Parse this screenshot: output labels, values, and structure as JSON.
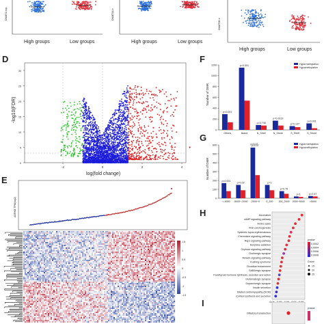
{
  "panels": {
    "D": "D",
    "E": "E",
    "F": "F",
    "G": "G",
    "H": "H",
    "I": "I"
  },
  "top": {
    "ylabels": [
      "DNMT1 exp",
      "DNMT3A e",
      "DNMT3B e"
    ],
    "xlabels": [
      "High groups",
      "Low groups"
    ],
    "colors": {
      "high": "#2a6fdb",
      "low": "#e0303a"
    }
  },
  "volcano": {
    "ylabel": "-log10(FDR)",
    "xlabel": "log(fold change)",
    "yticks": [
      "0",
      "5",
      "10",
      "15",
      "20",
      "25",
      "30"
    ],
    "xticks": [
      "-2",
      "0",
      "2",
      "4"
    ],
    "colors": {
      "down": "#22c41f",
      "mid": "#1c1cdb",
      "up": "#e01a1a"
    }
  },
  "expr": {
    "ylabel": "AURKB TPM(log2)",
    "colorbar_ticks": [
      "1.5",
      "1",
      "0.5",
      "0",
      "-0.5",
      "-1",
      "-1.5"
    ]
  },
  "dmr_f": {
    "ylabel": "Number of DMR",
    "legend": [
      "Hypermethylation",
      "Hypomethylation"
    ],
    "categories": [
      "Others",
      "Island",
      "N_Shelf",
      "N_Shore",
      "S_Shelf",
      "S_Shore"
    ],
    "pvalues": [
      "p<0.001",
      "p=0.001",
      "p=0.746",
      "p=0.0019",
      "p=0.137",
      "p<0.001"
    ],
    "yticks": [
      "0",
      "200",
      "400",
      "600",
      "800",
      "1000",
      "1200"
    ],
    "hyper": [
      290,
      1150,
      90,
      170,
      70,
      120
    ],
    "hypo": [
      140,
      540,
      80,
      80,
      50,
      30
    ],
    "ymax": 1200
  },
  "dmr_g": {
    "ylabel": "Number of DMR",
    "legend": [
      "Hypermethylation",
      "Hypomethylation"
    ],
    "categories": [
      "<-5000",
      "-5000~-2000",
      "-2000~0",
      "0_200",
      "200_2000",
      "2000~5000",
      ">5000"
    ],
    "pvalues": [
      "p<0.001",
      "p=0.02",
      "p=0.07",
      "p=1",
      "p=0.76",
      "p=1",
      "p=0.47"
    ],
    "extra_pvalue": "p=0.07",
    "yticks": [
      "0",
      "100",
      "200",
      "300",
      "400",
      "500",
      "600"
    ],
    "hyper": [
      170,
      150,
      570,
      150,
      80,
      20,
      25
    ],
    "hypo": [
      80,
      90,
      260,
      90,
      50,
      15,
      20
    ],
    "ymax": 600
  },
  "kegg_h": {
    "xlabel": "GeneRatio",
    "xticks": [
      "0.04",
      "0.05",
      "0.06",
      "0.07",
      "0.08"
    ],
    "legend_pvalue": "pvalue",
    "legend_pvalue_ticks": [
      "0.0002",
      "0.0004",
      "0.0006",
      "0.0008"
    ],
    "legend_count": "Count",
    "legend_count_ticks": [
      "15",
      "20",
      "25"
    ],
    "terms": [
      {
        "name": "Alcoholism",
        "ratio": 0.081,
        "color": "#e0303a"
      },
      {
        "name": "cAMP signaling pathway",
        "ratio": 0.077,
        "color": "#e0303a"
      },
      {
        "name": "Amino acids",
        "ratio": 0.072,
        "color": "#e0303a"
      },
      {
        "name": "Viral carcinogenesis",
        "ratio": 0.069,
        "color": "#e0303a"
      },
      {
        "name": "Systemic lupus erythematosus",
        "ratio": 0.066,
        "color": "#d8306a"
      },
      {
        "name": "Chemokine signaling pathway",
        "ratio": 0.064,
        "color": "#e0303a"
      },
      {
        "name": "Rap1 signaling pathway",
        "ratio": 0.063,
        "color": "#e0303a"
      },
      {
        "name": "Morphine addiction",
        "ratio": 0.06,
        "color": "#e0303a"
      },
      {
        "name": "Oxytocin signaling pathway",
        "ratio": 0.058,
        "color": "#e0303a"
      },
      {
        "name": "Cholinergic synapse",
        "ratio": 0.056,
        "color": "#9a3ab0"
      },
      {
        "name": "Relaxin signaling pathway",
        "ratio": 0.054,
        "color": "#e0303a"
      },
      {
        "name": "Cushing syndrome",
        "ratio": 0.053,
        "color": "#e0303a"
      },
      {
        "name": "Circadian entrainment",
        "ratio": 0.052,
        "color": "#e0303a"
      },
      {
        "name": "GABAergic synapse",
        "ratio": 0.051,
        "color": "#e0303a"
      },
      {
        "name": "Parathyroid hormone synthesis, secretion and action",
        "ratio": 0.05,
        "color": "#5a40c8"
      },
      {
        "name": "Glutamatergic synapse",
        "ratio": 0.049,
        "color": "#e0303a"
      },
      {
        "name": "Dopaminergic synapse",
        "ratio": 0.048,
        "color": "#e0303a"
      },
      {
        "name": "Insulin secretion",
        "ratio": 0.047,
        "color": "#3a30d8"
      },
      {
        "name": "Dilated cardiomyopathy (DCM)",
        "ratio": 0.046,
        "color": "#3a30d8"
      },
      {
        "name": "Cortisol synthesis and secretion",
        "ratio": 0.045,
        "color": "#2a30e0"
      }
    ]
  },
  "kegg_i": {
    "terms": [
      {
        "name": "Olfactory transduction"
      }
    ],
    "legend_pvalue": "pvalue"
  }
}
